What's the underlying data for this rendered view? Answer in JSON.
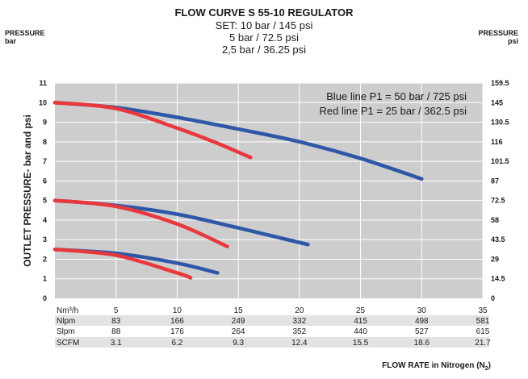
{
  "header": {
    "title": "FLOW CURVE S 55-10 REGULATOR",
    "set_lines": [
      "SET: 10 bar / 145 psi",
      "5 bar / 72.5 psi",
      "2,5 bar / 36.25 psi"
    ],
    "left_axis_head": [
      "PRESSURE",
      "bar"
    ],
    "right_axis_head": [
      "PRESSURE",
      "psi"
    ],
    "x_axis_label": "FLOW RATE in Nitrogen (N",
    "x_axis_label_sub": "2",
    "x_axis_label_end": ")"
  },
  "chart_data": {
    "type": "line",
    "title": "FLOW CURVE S 55-10 REGULATOR",
    "ylabel": "OUTLET PRESSURE- bar and psi",
    "xlabel": "FLOW RATE in Nitrogen (N2)",
    "xlim": [
      0,
      35
    ],
    "ylim": [
      0,
      11
    ],
    "y_ticks_bar": [
      "0",
      "1",
      "2",
      "3",
      "4",
      "5",
      "6",
      "7",
      "8",
      "9",
      "10",
      "11"
    ],
    "y_ticks_psi": [
      "0",
      "14.5",
      "29",
      "43.5",
      "58",
      "72.5",
      "87",
      "101.5",
      "116",
      "130.5",
      "145",
      "159.5"
    ],
    "grid": true,
    "annotations": [
      "Blue line P1 = 50 bar / 725 psi",
      "Red line P1 = 25 bar / 362.5 psi"
    ],
    "colors": {
      "blue": "#2f57a8",
      "red": "#e8383d",
      "plot_bg": "#cdcdcd"
    },
    "series": [
      {
        "color": "blue",
        "x": [
          0,
          5,
          10,
          15,
          20,
          25,
          30
        ],
        "y": [
          10,
          9.75,
          9.25,
          8.65,
          8,
          7.15,
          6.1
        ]
      },
      {
        "color": "red",
        "x": [
          0,
          5,
          10,
          13,
          16
        ],
        "y": [
          10,
          9.7,
          8.7,
          8,
          7.2
        ]
      },
      {
        "color": "blue",
        "x": [
          0,
          5,
          10,
          15,
          20.7
        ],
        "y": [
          5,
          4.75,
          4.3,
          3.6,
          2.75
        ]
      },
      {
        "color": "red",
        "x": [
          0,
          5,
          10,
          14.1
        ],
        "y": [
          5,
          4.7,
          3.8,
          2.65
        ]
      },
      {
        "color": "blue",
        "x": [
          0,
          5,
          10,
          13.3
        ],
        "y": [
          2.5,
          2.3,
          1.8,
          1.3
        ]
      },
      {
        "color": "red",
        "x": [
          0,
          5,
          10,
          11.1
        ],
        "y": [
          2.5,
          2.2,
          1.3,
          1.05
        ]
      }
    ],
    "flow_table": {
      "rows": [
        {
          "label": "Nm³/h",
          "values": [
            "5",
            "10",
            "15",
            "20",
            "25",
            "30",
            "35"
          ]
        },
        {
          "label": "Nlpm",
          "values": [
            "83",
            "166",
            "249",
            "332",
            "415",
            "498",
            "581"
          ]
        },
        {
          "label": "Slpm",
          "values": [
            "88",
            "176",
            "264",
            "352",
            "440",
            "527",
            "615"
          ]
        },
        {
          "label": "SCFM",
          "values": [
            "3.1",
            "6.2",
            "9.3",
            "12.4",
            "15.5",
            "18.6",
            "21.7"
          ]
        }
      ]
    }
  }
}
